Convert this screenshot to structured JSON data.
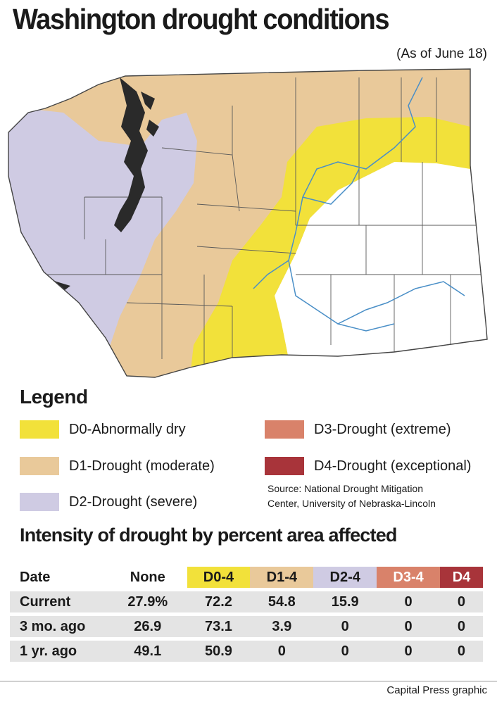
{
  "header": {
    "title": "Washington drought conditions",
    "as_of": "(As of June 18)"
  },
  "colors": {
    "d0": "#f2e13a",
    "d1": "#e9c99a",
    "d2": "#cfcbe3",
    "d3": "#d9826a",
    "d4": "#a8343a",
    "none": "#ffffff",
    "rivers": "#4a8fc7"
  },
  "legend": {
    "title": "Legend",
    "items": [
      {
        "label": "D0-Abnormally dry",
        "color": "#f2e13a"
      },
      {
        "label": "D1-Drought (moderate)",
        "color": "#e9c99a"
      },
      {
        "label": "D2-Drought (severe)",
        "color": "#cfcbe3"
      },
      {
        "label": "D3-Drought (extreme)",
        "color": "#d9826a"
      },
      {
        "label": "D4-Drought (exceptional)",
        "color": "#a8343a"
      }
    ],
    "source_line1": "Source: National Drought Mitigation",
    "source_line2": "Center, University of Nebraska-Lincoln"
  },
  "intensity": {
    "title": "Intensity of drought by percent area affected",
    "columns": [
      "Date",
      "None",
      "D0-4",
      "D1-4",
      "D2-4",
      "D3-4",
      "D4"
    ],
    "rows": [
      [
        "Current",
        "27.9%",
        "72.2",
        "54.8",
        "15.9",
        "0",
        "0"
      ],
      [
        "3 mo. ago",
        "26.9",
        "73.1",
        "3.9",
        "0",
        "0",
        "0"
      ],
      [
        "1 yr. ago",
        "49.1",
        "50.9",
        "0",
        "0",
        "0",
        "0"
      ]
    ]
  },
  "footer": {
    "credit": "Capital Press graphic"
  }
}
